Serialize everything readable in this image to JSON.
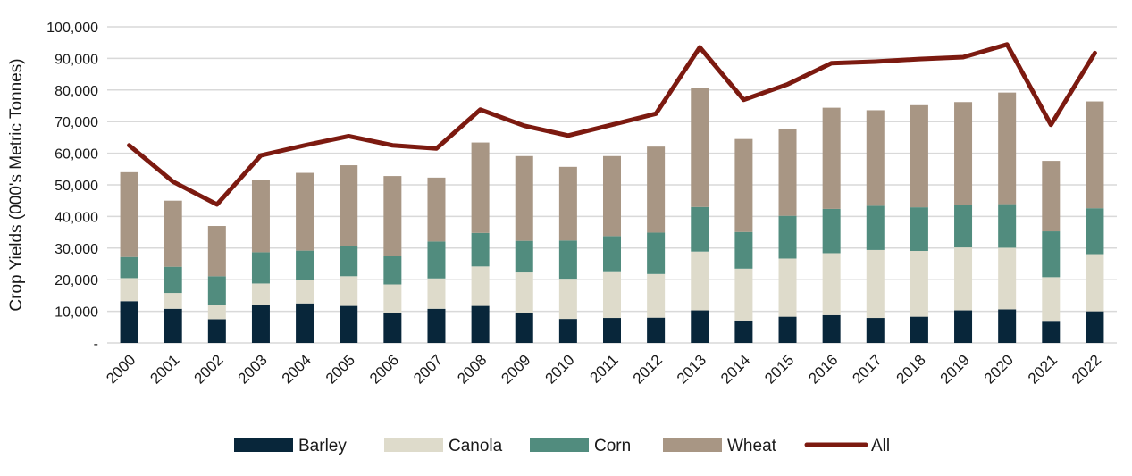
{
  "chart_data": {
    "type": "bar",
    "stacked": true,
    "title": "",
    "xlabel": "",
    "ylabel": "Crop Yields (000's Metric Tonnes)",
    "ylim": [
      0,
      100000
    ],
    "yticks": [
      0,
      10000,
      20000,
      30000,
      40000,
      50000,
      60000,
      70000,
      80000,
      90000,
      100000
    ],
    "ytick_labels": [
      "-",
      "10,000",
      "20,000",
      "30,000",
      "40,000",
      "50,000",
      "60,000",
      "70,000",
      "80,000",
      "90,000",
      "100,000"
    ],
    "grid": true,
    "legend_position": "bottom",
    "categories": [
      "2000",
      "2001",
      "2002",
      "2003",
      "2004",
      "2005",
      "2006",
      "2007",
      "2008",
      "2009",
      "2010",
      "2011",
      "2012",
      "2013",
      "2014",
      "2015",
      "2016",
      "2017",
      "2018",
      "2019",
      "2020",
      "2021",
      "2022"
    ],
    "series": [
      {
        "name": "Barley",
        "kind": "bar",
        "color": "#08263a",
        "values": [
          13200,
          10800,
          7500,
          12000,
          12500,
          11700,
          9500,
          10800,
          11700,
          9500,
          7600,
          7900,
          8000,
          10300,
          7100,
          8300,
          8800,
          7900,
          8300,
          10300,
          10600,
          7000,
          10000
        ]
      },
      {
        "name": "Canola",
        "kind": "bar",
        "color": "#dedbcb",
        "values": [
          7300,
          5000,
          4400,
          6800,
          7500,
          9400,
          9000,
          9600,
          12500,
          12800,
          12700,
          14500,
          13800,
          18600,
          16400,
          18400,
          19600,
          21500,
          20800,
          19900,
          19500,
          13800,
          18100
        ]
      },
      {
        "name": "Corn",
        "kind": "bar",
        "color": "#518c7e",
        "values": [
          6700,
          8300,
          9200,
          9900,
          9200,
          9500,
          8900,
          11700,
          10600,
          10000,
          12100,
          11400,
          13100,
          14100,
          11600,
          13500,
          14000,
          14000,
          13800,
          13400,
          13800,
          14500,
          14500
        ]
      },
      {
        "name": "Wheat",
        "kind": "bar",
        "color": "#a89684",
        "values": [
          26800,
          20900,
          15900,
          22800,
          24600,
          25600,
          25400,
          20200,
          28600,
          26800,
          23300,
          25300,
          27200,
          37600,
          29400,
          27600,
          32000,
          30200,
          32300,
          32600,
          35300,
          22300,
          33800
        ]
      },
      {
        "name": "All",
        "kind": "line",
        "color": "#7c1a10",
        "values": [
          62500,
          51000,
          43800,
          59300,
          62500,
          65400,
          62500,
          61500,
          73800,
          68700,
          65600,
          69000,
          72500,
          93500,
          76900,
          81800,
          88500,
          89000,
          89800,
          90400,
          94400,
          69000,
          91700
        ]
      }
    ]
  }
}
